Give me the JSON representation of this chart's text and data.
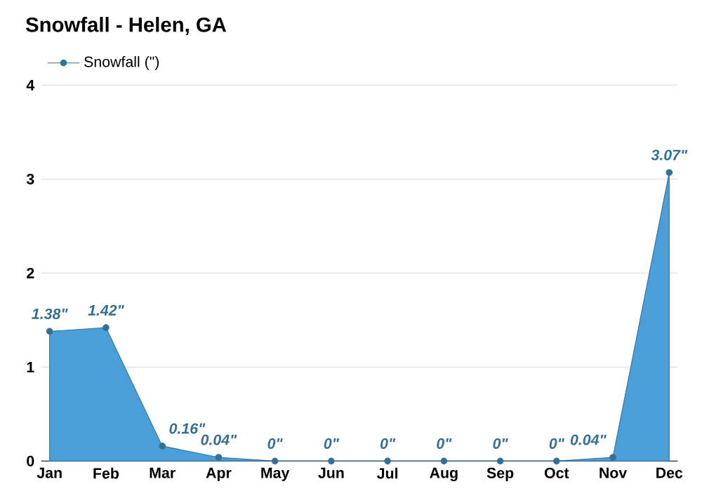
{
  "chart_data": {
    "type": "area",
    "title": "Snowfall - Helen, GA",
    "categories": [
      "Jan",
      "Feb",
      "Mar",
      "Apr",
      "May",
      "Jun",
      "Jul",
      "Aug",
      "Sep",
      "Oct",
      "Nov",
      "Dec"
    ],
    "series": [
      {
        "name": "Snowfall (\")",
        "color": "#4a9fd8",
        "values": [
          1.38,
          1.42,
          0.16,
          0.04,
          0,
          0,
          0,
          0,
          0,
          0,
          0.04,
          3.07
        ],
        "value_labels": [
          "1.38\"",
          "1.42\"",
          "0.16\"",
          "0.04\"",
          "0\"",
          "0\"",
          "0\"",
          "0\"",
          "0\"",
          "0\"",
          "0.04\"",
          "3.07\""
        ]
      }
    ],
    "ylim": [
      0,
      4
    ],
    "yticks": [
      0,
      1,
      2,
      3,
      4
    ],
    "grid": "y",
    "legend": "top left",
    "marker": "circle"
  }
}
